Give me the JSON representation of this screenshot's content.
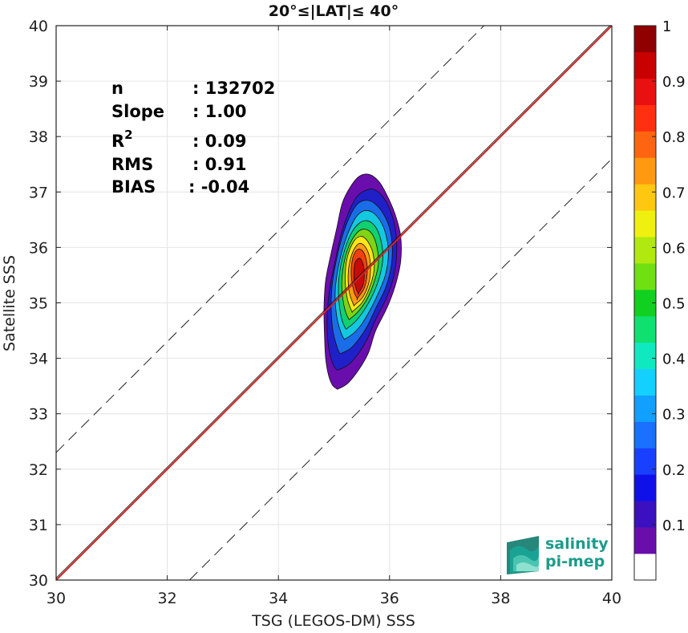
{
  "chart_data": {
    "type": "contour",
    "title": "20°≤|LAT|≤ 40°",
    "xlabel": "TSG (LEGOS-DM) SSS",
    "ylabel": "Satellite SSS",
    "xlim": [
      30,
      40
    ],
    "ylim": [
      30,
      40
    ],
    "x_ticks": [
      30,
      32,
      34,
      36,
      38,
      40
    ],
    "y_ticks": [
      30,
      31,
      32,
      33,
      34,
      35,
      36,
      37,
      38,
      39,
      40
    ],
    "grid": true,
    "stats": [
      {
        "label": "n",
        "value": ": 132702"
      },
      {
        "label": "Slope",
        "value": ": 1.00"
      },
      {
        "label": "R",
        "sup": "2",
        "value": ": 0.09"
      },
      {
        "label": "RMS",
        "value": ": 0.91"
      },
      {
        "label": "BIAS",
        "value": ": -0.04"
      }
    ],
    "reference_lines": [
      {
        "kind": "one-to-one",
        "color": "#d42020",
        "points": [
          [
            30,
            30
          ],
          [
            40,
            40
          ]
        ]
      },
      {
        "kind": "upper-dashed",
        "color": "#222222",
        "points": [
          [
            30,
            32.3
          ],
          [
            37.7,
            40
          ]
        ]
      },
      {
        "kind": "lower-dashed",
        "color": "#222222",
        "points": [
          [
            32.4,
            30
          ],
          [
            40,
            37.6
          ]
        ]
      }
    ],
    "density_center": [
      35.45,
      35.35
    ],
    "density_levels": [
      {
        "level": 0.05,
        "color": "#6a0dad",
        "x": [
          35.08,
          35.25,
          35.45,
          35.62,
          35.75,
          35.95,
          36.1,
          36.2,
          36.2,
          36.1,
          35.95,
          35.8,
          35.62,
          35.45,
          35.3,
          35.15,
          35.05,
          34.95,
          34.85,
          34.82,
          34.83,
          34.85,
          34.9,
          34.97,
          35.05
        ],
        "y": [
          33.45,
          33.55,
          33.8,
          34.1,
          34.5,
          34.9,
          35.3,
          35.75,
          36.2,
          36.6,
          36.95,
          37.2,
          37.32,
          37.28,
          37.1,
          36.8,
          36.35,
          35.9,
          35.4,
          34.9,
          34.4,
          34.0,
          33.7,
          33.52,
          33.45
        ]
      },
      {
        "level": 0.15,
        "color": "#2020c8",
        "x": [
          35.1,
          35.28,
          35.45,
          35.6,
          35.75,
          35.95,
          36.08,
          36.13,
          36.1,
          36.0,
          35.85,
          35.7,
          35.55,
          35.4,
          35.25,
          35.12,
          35.02,
          34.93,
          34.88,
          34.88,
          34.92,
          34.98,
          35.04
        ],
        "y": [
          33.8,
          33.9,
          34.1,
          34.35,
          34.7,
          35.1,
          35.5,
          35.95,
          36.35,
          36.7,
          36.95,
          37.05,
          37.02,
          36.9,
          36.6,
          36.2,
          35.75,
          35.3,
          34.85,
          34.45,
          34.1,
          33.9,
          33.8
        ]
      },
      {
        "level": 0.25,
        "color": "#1a6de8",
        "x": [
          35.15,
          35.3,
          35.45,
          35.6,
          35.75,
          35.92,
          36.02,
          36.05,
          36.0,
          35.88,
          35.72,
          35.57,
          35.42,
          35.28,
          35.15,
          35.05,
          34.97,
          34.95,
          34.98,
          35.05,
          35.1
        ],
        "y": [
          34.1,
          34.18,
          34.35,
          34.58,
          34.9,
          35.25,
          35.6,
          35.98,
          36.35,
          36.62,
          36.8,
          36.85,
          36.78,
          36.55,
          36.2,
          35.8,
          35.35,
          34.9,
          34.5,
          34.22,
          34.1
        ]
      },
      {
        "level": 0.35,
        "color": "#14c8e0",
        "x": [
          35.2,
          35.35,
          35.5,
          35.65,
          35.8,
          35.93,
          35.98,
          35.93,
          35.82,
          35.68,
          35.54,
          35.4,
          35.27,
          35.15,
          35.06,
          35.02,
          35.05,
          35.12,
          35.18
        ],
        "y": [
          34.35,
          34.45,
          34.62,
          34.87,
          35.18,
          35.52,
          35.9,
          36.25,
          36.5,
          36.64,
          36.66,
          36.55,
          36.3,
          35.95,
          35.55,
          35.15,
          34.75,
          34.48,
          34.35
        ]
      },
      {
        "level": 0.45,
        "color": "#10d070",
        "x": [
          35.25,
          35.4,
          35.55,
          35.7,
          35.82,
          35.88,
          35.84,
          35.74,
          35.6,
          35.46,
          35.32,
          35.2,
          35.11,
          35.08,
          35.12,
          35.2
        ],
        "y": [
          34.55,
          34.68,
          34.88,
          35.15,
          35.47,
          35.82,
          36.15,
          36.38,
          36.48,
          36.44,
          36.27,
          35.98,
          35.6,
          35.2,
          34.8,
          34.55
        ]
      },
      {
        "level": 0.55,
        "color": "#7fd414",
        "x": [
          35.3,
          35.45,
          35.6,
          35.72,
          35.8,
          35.77,
          35.68,
          35.55,
          35.42,
          35.28,
          35.18,
          35.14,
          35.18,
          35.26
        ],
        "y": [
          34.72,
          34.86,
          35.08,
          35.37,
          35.7,
          36.02,
          36.25,
          36.33,
          36.27,
          36.05,
          35.72,
          35.32,
          34.95,
          34.72
        ]
      },
      {
        "level": 0.65,
        "color": "#ffe614",
        "x": [
          35.34,
          35.5,
          35.63,
          35.72,
          35.7,
          35.6,
          35.48,
          35.35,
          35.24,
          35.2,
          35.24,
          35.32
        ],
        "y": [
          34.85,
          35.0,
          35.25,
          35.58,
          35.9,
          36.12,
          36.2,
          36.1,
          35.82,
          35.45,
          35.08,
          34.85
        ]
      },
      {
        "level": 0.75,
        "color": "#ff9a10",
        "x": [
          35.38,
          35.53,
          35.64,
          35.65,
          35.57,
          35.45,
          35.33,
          35.26,
          35.27,
          35.35
        ],
        "y": [
          34.97,
          35.12,
          35.42,
          35.77,
          36.0,
          36.07,
          35.9,
          35.58,
          35.22,
          34.97
        ]
      },
      {
        "level": 0.85,
        "color": "#f04010",
        "x": [
          35.42,
          35.55,
          35.6,
          35.55,
          35.44,
          35.34,
          35.31,
          35.36,
          35.42
        ],
        "y": [
          35.08,
          35.28,
          35.6,
          35.88,
          35.97,
          35.82,
          35.5,
          35.2,
          35.08
        ]
      },
      {
        "level": 0.95,
        "color": "#c80a0a",
        "x": [
          35.44,
          35.53,
          35.54,
          35.47,
          35.38,
          35.36,
          35.4,
          35.44
        ],
        "y": [
          35.17,
          35.35,
          35.62,
          35.8,
          35.72,
          35.45,
          35.25,
          35.17
        ]
      }
    ],
    "colorbar": {
      "ticks": [
        "0.1",
        "0.2",
        "0.3",
        "0.4",
        "0.5",
        "0.6",
        "0.7",
        "0.8",
        "0.9",
        "1"
      ],
      "tick_values": [
        0.1,
        0.2,
        0.3,
        0.4,
        0.5,
        0.6,
        0.7,
        0.8,
        0.9,
        1.0
      ],
      "range": [
        0,
        1
      ],
      "colors": [
        "#ffffff",
        "#6a0dad",
        "#3a10c0",
        "#1010e8",
        "#1a40ff",
        "#1a70ff",
        "#10a0ff",
        "#14d0ff",
        "#10e8c0",
        "#10e070",
        "#10d020",
        "#70e010",
        "#b0e810",
        "#f0f010",
        "#ffc810",
        "#ff9a10",
        "#ff6410",
        "#ff3010",
        "#e81010",
        "#c80000",
        "#900000"
      ]
    }
  },
  "logo": {
    "line1": "salinity",
    "line2": "pi-mep",
    "color": "#1a9c8a"
  }
}
